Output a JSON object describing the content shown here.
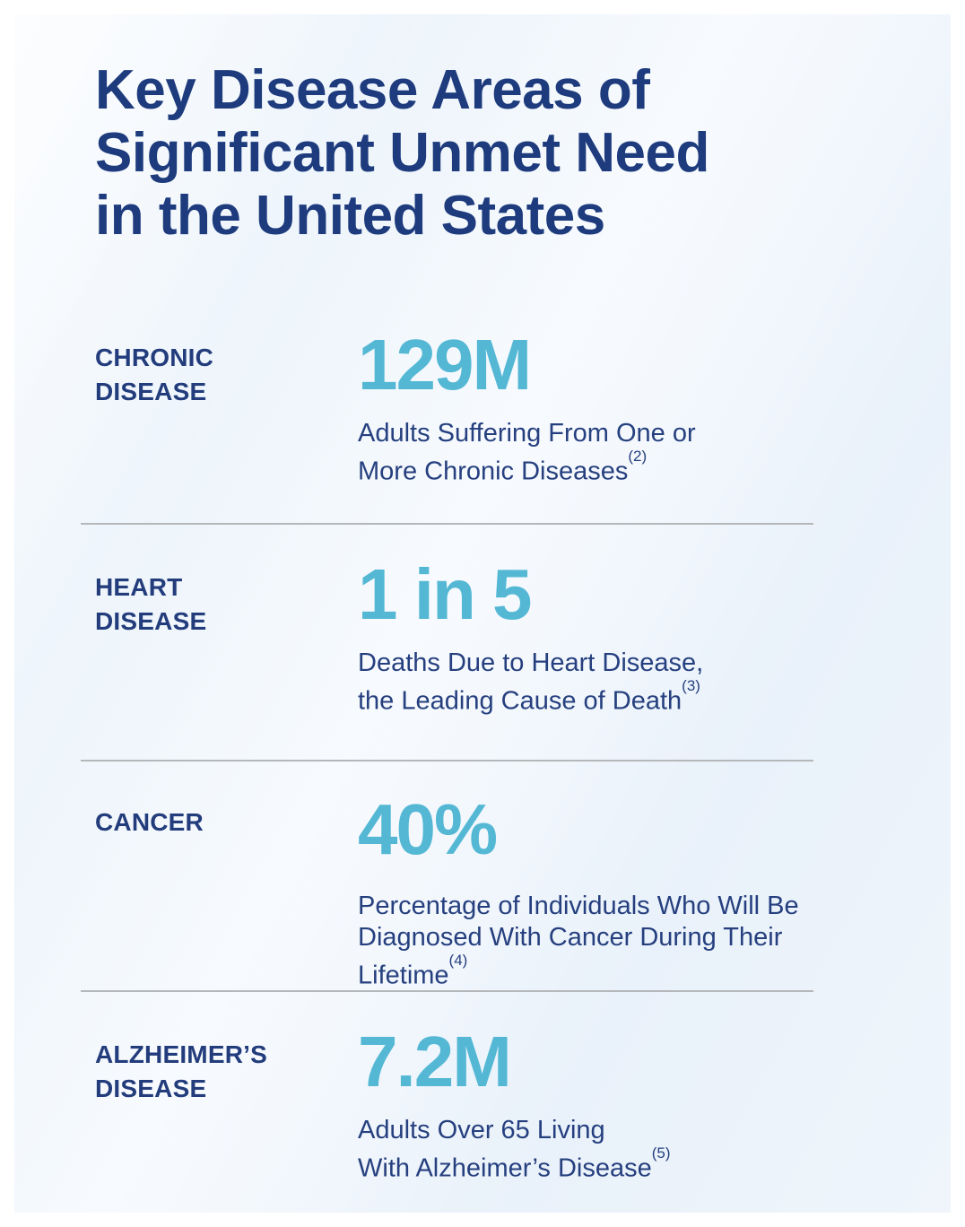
{
  "title": {
    "lines": [
      "Key Disease Areas of",
      "Significant Unmet Need",
      "in the United States"
    ]
  },
  "sections": [
    {
      "id": "chronic-disease",
      "label_lines": [
        "CHRONIC",
        "DISEASE"
      ],
      "stat": "129M",
      "desc_lines": [
        "Adults Suffering From One or",
        "More Chronic Diseases"
      ],
      "ref": "(2)"
    },
    {
      "id": "heart-disease",
      "label_lines": [
        "HEART",
        "DISEASE"
      ],
      "stat": "1 in 5",
      "desc_lines": [
        "Deaths Due to Heart Disease,",
        "the Leading Cause of Death"
      ],
      "ref": "(3)"
    },
    {
      "id": "cancer",
      "label_lines": [
        "CANCER"
      ],
      "stat": "40%",
      "desc_lines": [
        "Percentage of Individuals Who Will Be",
        "Diagnosed With Cancer During Their",
        "Lifetime"
      ],
      "ref": "(4)"
    },
    {
      "id": "alzheimers-disease",
      "label_lines": [
        "ALZHEIMER’S",
        "DISEASE"
      ],
      "stat": "7.2M",
      "desc_lines": [
        "Adults Over 65 Living",
        "With Alzheimer’s Disease"
      ],
      "ref": "(5)"
    }
  ],
  "colors": {
    "title_navy": "#1d3b7d",
    "body_navy": "#26407f",
    "label_navy": "#223c7c",
    "stat_teal": "#54b8d5",
    "divider_gray": "#b5b8ba",
    "card_background": "#edf4fb",
    "page_margin": "#ffffff"
  }
}
